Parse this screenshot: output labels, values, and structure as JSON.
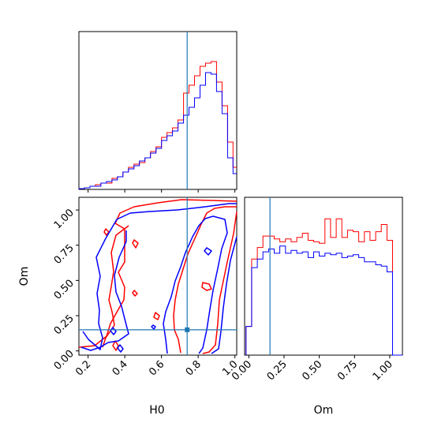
{
  "chart_data": {
    "type": "corner",
    "parameters": [
      "H0",
      "Om"
    ],
    "xlabel_h0": "H0",
    "xlabel_om": "Om",
    "ylabel_om": "Om",
    "truth": {
      "H0": 0.74,
      "Om": 0.15
    },
    "truth_color": "#1f77b4",
    "series_colors": {
      "red": "#ff0000",
      "blue": "#0000ff"
    },
    "h0_ticks": [
      "0.2",
      "0.4",
      "0.6",
      "0.8",
      "1.0"
    ],
    "om_ticks": [
      "0.00",
      "0.25",
      "0.50",
      "0.75",
      "1.00"
    ],
    "h0_range": [
      0.15,
      1.01
    ],
    "om_range": [
      -0.03,
      1.09
    ],
    "hist_h0": {
      "edges": [
        0.15,
        0.18,
        0.21,
        0.24,
        0.27,
        0.3,
        0.33,
        0.36,
        0.39,
        0.42,
        0.45,
        0.48,
        0.51,
        0.54,
        0.57,
        0.6,
        0.63,
        0.66,
        0.69,
        0.72,
        0.75,
        0.78,
        0.81,
        0.84,
        0.87,
        0.9,
        0.93,
        0.96,
        0.99,
        1.01
      ],
      "red": [
        0.5,
        1,
        2,
        3,
        4,
        4,
        7,
        8,
        11,
        14,
        16,
        17,
        20,
        24,
        27,
        33,
        36,
        39,
        44,
        61,
        66,
        72,
        78,
        80,
        81,
        68,
        53,
        30,
        14
      ],
      "blue": [
        0.5,
        1,
        2,
        2,
        4,
        5,
        6,
        8,
        11,
        13,
        15,
        18,
        20,
        23,
        26,
        31,
        34,
        37,
        42,
        47,
        52,
        58,
        66,
        74,
        73,
        62,
        48,
        20,
        10
      ],
      "ymax": 100
    },
    "hist_om": {
      "edges": [
        -0.02,
        0.02,
        0.06,
        0.1,
        0.14,
        0.18,
        0.22,
        0.26,
        0.3,
        0.34,
        0.38,
        0.42,
        0.46,
        0.5,
        0.54,
        0.58,
        0.62,
        0.66,
        0.7,
        0.74,
        0.78,
        0.82,
        0.86,
        0.9,
        0.94,
        0.98,
        1.02,
        1.06,
        1.09
      ],
      "red": [
        20,
        67,
        75,
        83,
        83,
        81,
        79,
        81,
        79,
        82,
        85,
        80,
        79,
        78,
        95,
        82,
        95,
        82,
        87,
        86,
        79,
        86,
        80,
        86,
        91,
        80,
        0,
        0
      ],
      "blue": [
        20,
        61,
        67,
        72,
        74,
        71,
        76,
        71,
        73,
        71,
        72,
        68,
        72,
        69,
        71,
        70,
        71,
        68,
        69,
        70,
        68,
        65,
        65,
        63,
        62,
        58,
        0,
        0
      ],
      "ymax": 110
    }
  }
}
